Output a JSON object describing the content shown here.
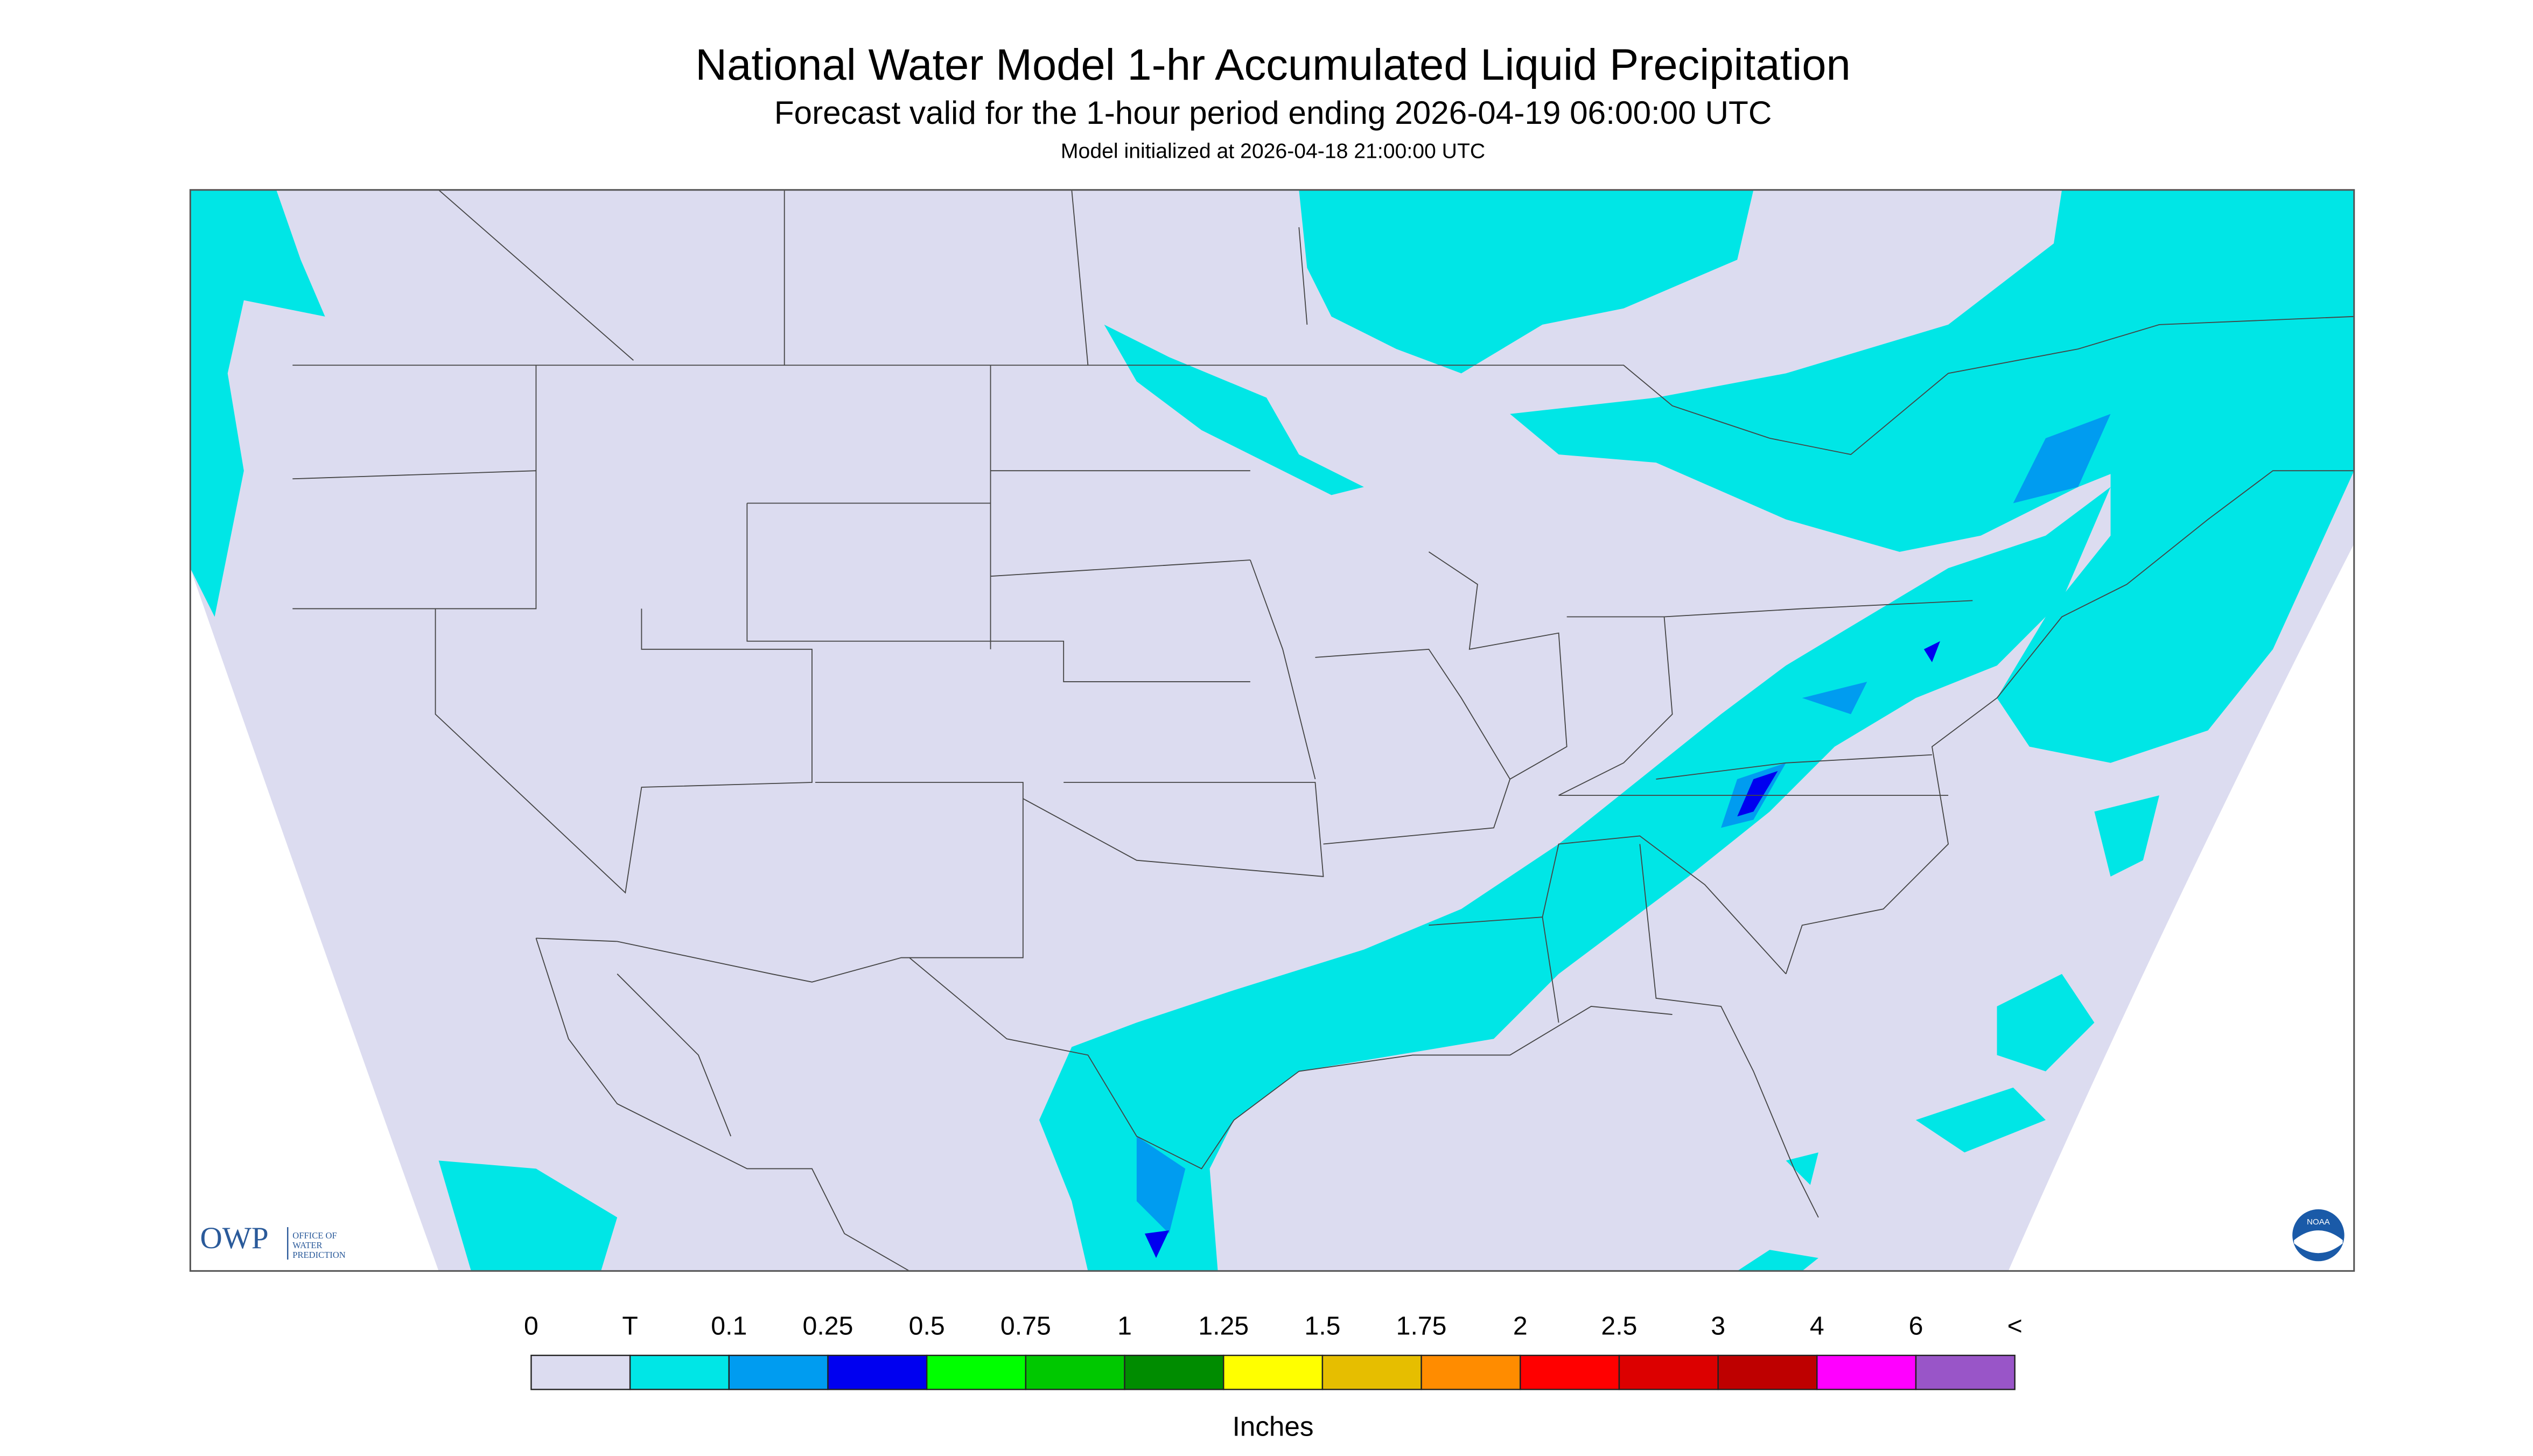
{
  "header": {
    "title": "National Water Model 1-hr Accumulated Liquid Precipitation",
    "subtitle": "Forecast valid for the 1-hour period ending 2026-04-19 06:00:00 UTC",
    "init": "Model initialized at 2026-04-18 21:00:00 UTC"
  },
  "legend": {
    "labels": [
      "0",
      "T",
      "0.1",
      "0.25",
      "0.5",
      "0.75",
      "1",
      "1.25",
      "1.5",
      "1.75",
      "2",
      "2.5",
      "3",
      "4",
      "6",
      "<"
    ],
    "colors": [
      "#dcdcf0",
      "#00e6e6",
      "#009cf0",
      "#0000f0",
      "#00ff00",
      "#00c800",
      "#008c00",
      "#ffff00",
      "#e6be00",
      "#ff8c00",
      "#ff0000",
      "#dc0000",
      "#be0000",
      "#ff00ff",
      "#9955c8"
    ],
    "unit": "Inches"
  },
  "logos": {
    "owp": "OWP",
    "owp_name": [
      "OFFICE OF",
      "WATER",
      "PREDICTION"
    ],
    "noaa": "NOAA"
  }
}
